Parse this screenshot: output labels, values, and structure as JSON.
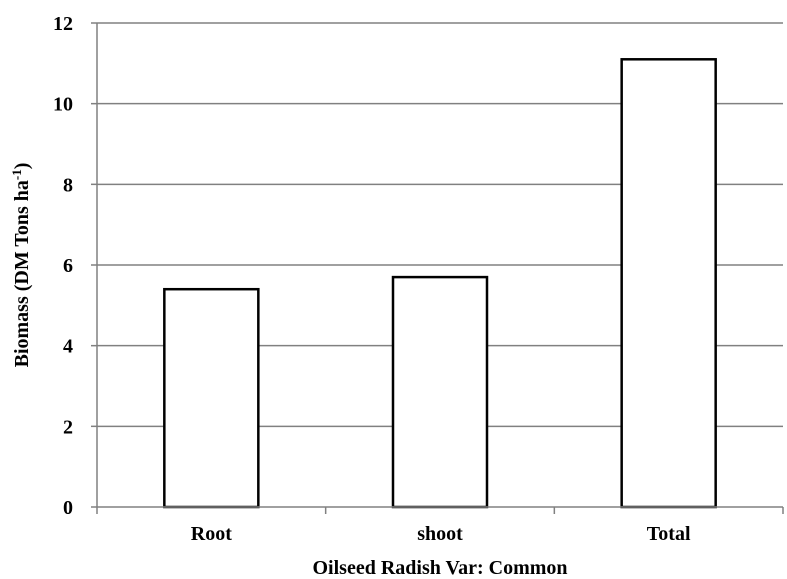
{
  "chart_data": {
    "type": "bar",
    "categories": [
      "Root",
      "shoot",
      "Total"
    ],
    "values": [
      5.4,
      5.7,
      11.1
    ],
    "xlabel": "Oilseed Radish Var: Common",
    "ylabel": "Biomass (DM Tons ha",
    "ylabel_superscript": "-1",
    "ylabel_suffix": ")",
    "ylim": [
      0,
      12
    ],
    "yticks": [
      "0",
      "2",
      "4",
      "6",
      "8",
      "10",
      "12"
    ],
    "grid": true,
    "legend": "none",
    "colors": {
      "bar_fill": "#ffffff",
      "bar_stroke": "#000000",
      "grid": "#808080",
      "axis": "#808080"
    }
  }
}
